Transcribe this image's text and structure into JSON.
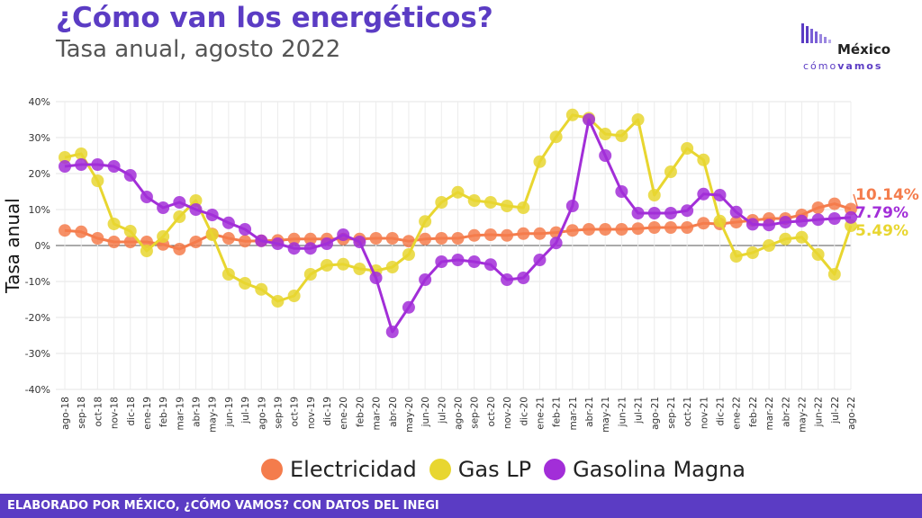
{
  "title": "¿Cómo van los energéticos?",
  "subtitle": "Tasa anual, agosto 2022",
  "logo": {
    "main": "México",
    "sub_1": "cómo",
    "sub_2": "vamos"
  },
  "footer": "ELABORADO POR MÉXICO, ¿CÓMO VAMOS? CON DATOS DEL INEGI",
  "chart_data": {
    "type": "line",
    "ylabel": "Tasa anual",
    "xlabel": "",
    "ylim": [
      -40,
      40
    ],
    "yticks": [
      -40,
      -30,
      -20,
      -10,
      0,
      10,
      20,
      30,
      40
    ],
    "ytick_labels": [
      "-40%",
      "-30%",
      "-20%",
      "-10%",
      "0%",
      "10%",
      "20%",
      "30%",
      "40%"
    ],
    "grid": true,
    "legend_position": "bottom",
    "categories": [
      "ago-18",
      "sep-18",
      "oct-18",
      "nov-18",
      "dic-18",
      "ene-19",
      "feb-19",
      "mar-19",
      "abr-19",
      "may-19",
      "jun-19",
      "jul-19",
      "ago-19",
      "sep-19",
      "oct-19",
      "nov-19",
      "dic-19",
      "ene-20",
      "feb-20",
      "mar-20",
      "abr-20",
      "may-20",
      "jun-20",
      "jul-20",
      "ago-20",
      "sep-20",
      "oct-20",
      "nov-20",
      "dic-20",
      "ene-21",
      "feb-21",
      "mar-21",
      "abr-21",
      "may-21",
      "jun-21",
      "jul-21",
      "ago-21",
      "sep-21",
      "oct-21",
      "nov-21",
      "dic-21",
      "ene-22",
      "feb-22",
      "mar-22",
      "abr-22",
      "may-22",
      "jun-22",
      "jul-22",
      "ago-22"
    ],
    "series": [
      {
        "name": "Electricidad",
        "color": "#f47c4c",
        "values": [
          4.2,
          3.8,
          2.0,
          1.0,
          1.0,
          1.0,
          0.3,
          -1.0,
          1.0,
          3.2,
          2.0,
          1.2,
          1.3,
          1.4,
          1.8,
          1.8,
          1.8,
          1.8,
          1.8,
          2.0,
          2.0,
          1.2,
          1.8,
          2.0,
          2.0,
          2.8,
          3.0,
          2.8,
          3.3,
          3.3,
          3.6,
          4.2,
          4.5,
          4.5,
          4.5,
          4.7,
          5.0,
          5.0,
          5.0,
          6.2,
          6.0,
          6.5,
          7.0,
          7.5,
          7.5,
          8.5,
          10.5,
          11.6,
          10.14
        ],
        "end_label": "10.14%"
      },
      {
        "name": "Gas LP",
        "color": "#e8d630",
        "values": [
          24.5,
          25.5,
          18.0,
          6.0,
          4.0,
          -1.5,
          2.5,
          8.0,
          12.5,
          3.0,
          -8.0,
          -10.5,
          -12.2,
          -15.5,
          -14.0,
          -8.0,
          -5.5,
          -5.2,
          -6.5,
          -7.0,
          -6.0,
          -2.5,
          6.7,
          12.0,
          14.8,
          12.5,
          12.0,
          11.0,
          10.5,
          23.3,
          30.2,
          36.3,
          35.4,
          31.0,
          30.5,
          35.0,
          14.0,
          20.5,
          27.0,
          23.8,
          6.8,
          -3.0,
          -2.0,
          0.0,
          1.8,
          2.3,
          -2.5,
          -8.0,
          5.49
        ],
        "end_label": "5.49%"
      },
      {
        "name": "Gasolina Magna",
        "color": "#a22ed8",
        "values": [
          22.0,
          22.5,
          22.5,
          22.0,
          19.5,
          13.5,
          10.5,
          12.0,
          10.0,
          8.5,
          6.3,
          4.5,
          1.3,
          0.5,
          -0.8,
          -0.8,
          0.5,
          3.0,
          1.0,
          -9.0,
          -24.0,
          -17.2,
          -9.5,
          -4.5,
          -4.0,
          -4.5,
          -5.3,
          -9.5,
          -9.0,
          -4.0,
          0.7,
          11.0,
          35.0,
          25.0,
          15.0,
          9.0,
          9.0,
          9.0,
          9.7,
          14.3,
          14.0,
          9.3,
          5.9,
          5.7,
          6.5,
          6.8,
          7.2,
          7.5,
          7.79
        ],
        "end_label": "7.79%"
      }
    ]
  }
}
